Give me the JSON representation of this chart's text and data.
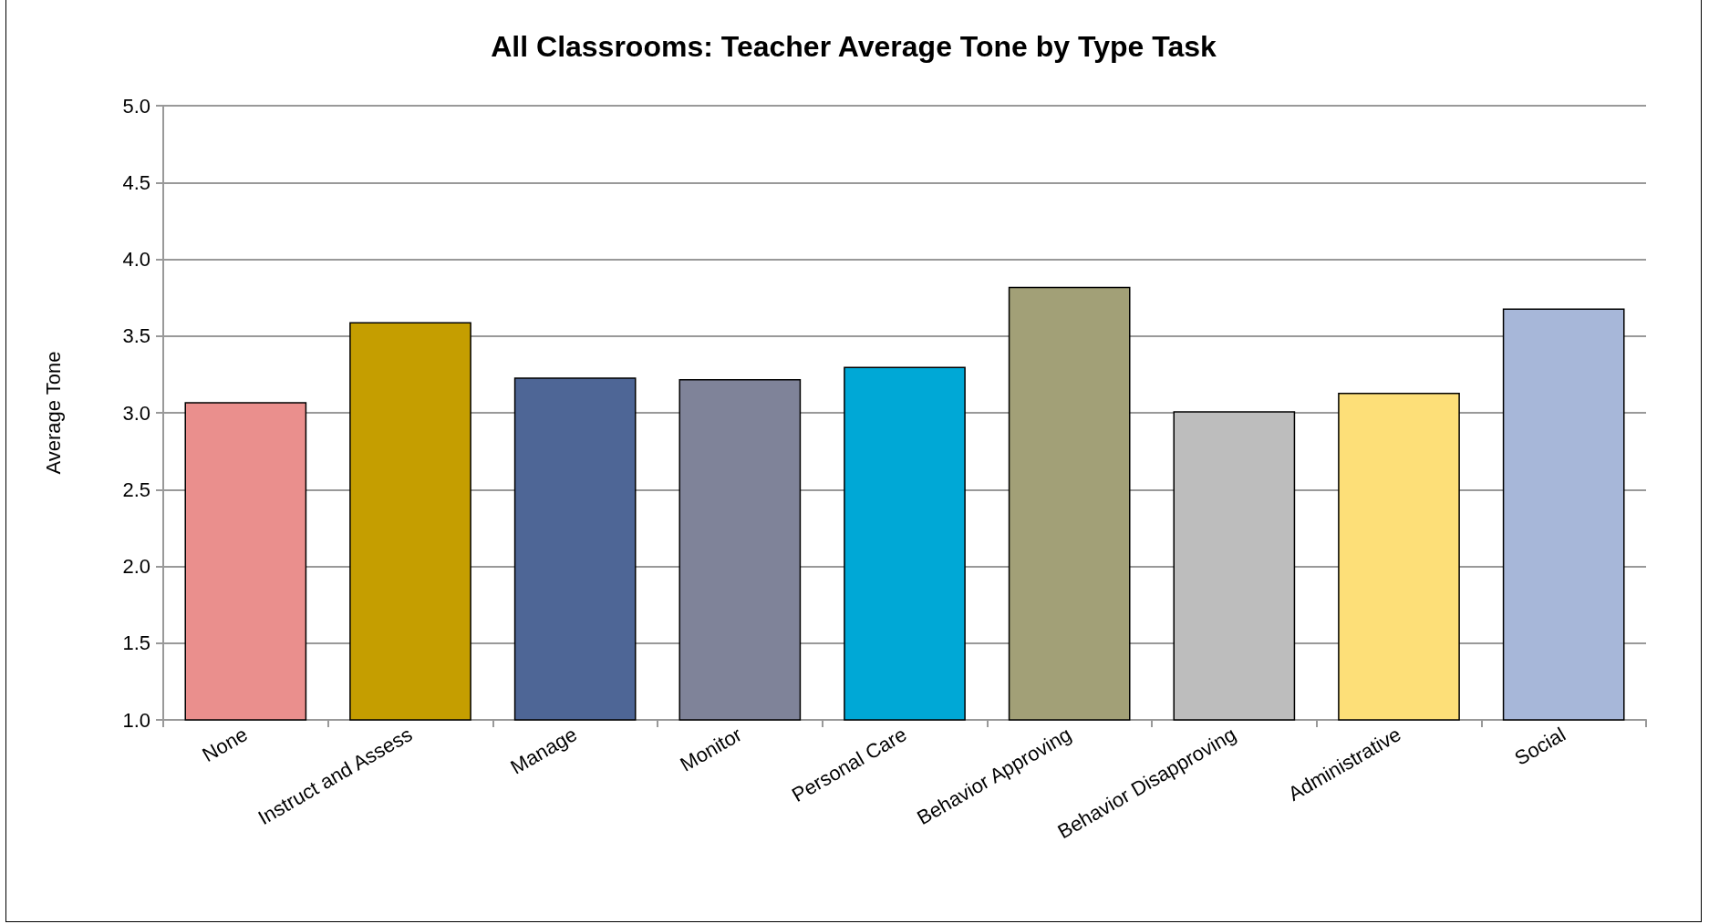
{
  "chart_data": {
    "type": "bar",
    "title": "All Classrooms: Teacher Average Tone by Type Task",
    "ylabel": "Average Tone",
    "categories": [
      "None",
      "Instruct and Assess",
      "Manage",
      "Monitor",
      "Personal Care",
      "Behavior Approving",
      "Behavior Disapproving",
      "Administrative",
      "Social"
    ],
    "values": [
      3.07,
      3.59,
      3.23,
      3.22,
      3.3,
      3.82,
      3.01,
      3.13,
      3.68
    ],
    "colors": [
      "#ea8f8d",
      "#c59e00",
      "#4e6696",
      "#7f8399",
      "#00a8d6",
      "#a2a077",
      "#bdbdbd",
      "#fddf78",
      "#a7b7d9"
    ],
    "ylim": [
      1.0,
      5.0
    ],
    "yticks": [
      {
        "value": 1,
        "label": "1.0"
      },
      {
        "value": 1.5,
        "label": "1.5"
      },
      {
        "value": 2,
        "label": "2.0"
      },
      {
        "value": 2.5,
        "label": "2.5"
      },
      {
        "value": 3,
        "label": "3.0"
      },
      {
        "value": 3.5,
        "label": "3.5"
      },
      {
        "value": 4,
        "label": "4.0"
      },
      {
        "value": 4.5,
        "label": "4.5"
      },
      {
        "value": 5,
        "label": "5.0"
      }
    ],
    "grid": "y"
  }
}
